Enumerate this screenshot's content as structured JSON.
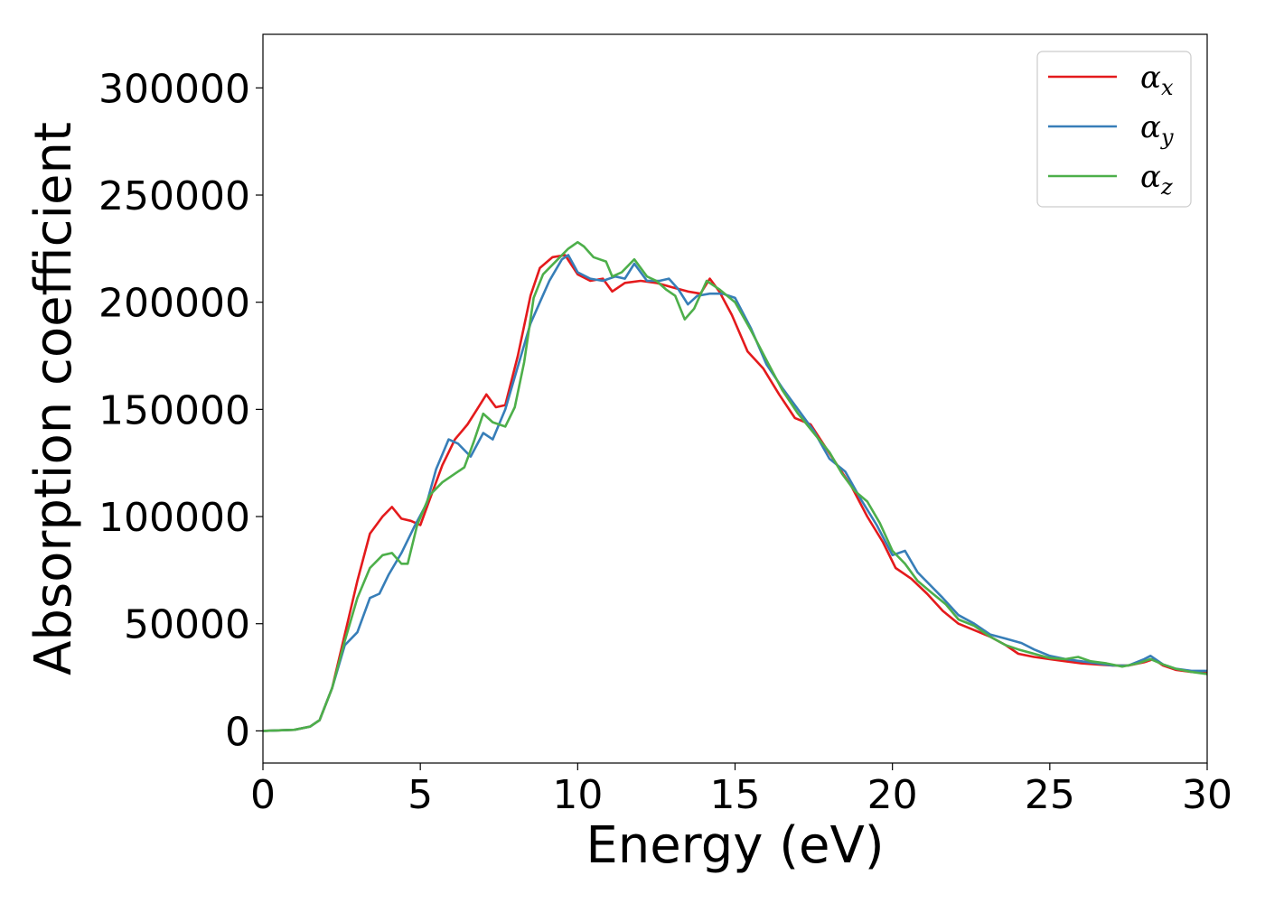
{
  "chart_data": {
    "type": "line",
    "title": "",
    "xlabel": "Energy (eV)",
    "ylabel": "Absorption coefficient",
    "xlim": [
      0,
      30
    ],
    "ylim": [
      -15000,
      325000
    ],
    "xticks": [
      "0",
      "5",
      "10",
      "15",
      "20",
      "25",
      "30"
    ],
    "yticks": [
      "0",
      "50000",
      "100000",
      "150000",
      "200000",
      "250000",
      "300000"
    ],
    "xtick_values": [
      0,
      5,
      10,
      15,
      20,
      25,
      30
    ],
    "ytick_values": [
      0,
      50000,
      100000,
      150000,
      200000,
      250000,
      300000
    ],
    "grid": false,
    "legend_position": "top-right",
    "series": [
      {
        "name": "αx",
        "label_main": "α",
        "label_sub": "x",
        "color": "#e41a1c",
        "points": [
          [
            0,
            0
          ],
          [
            1,
            500
          ],
          [
            1.5,
            2000
          ],
          [
            1.8,
            5000
          ],
          [
            2.2,
            20000
          ],
          [
            2.6,
            45000
          ],
          [
            3.0,
            70000
          ],
          [
            3.4,
            92000
          ],
          [
            3.8,
            100000
          ],
          [
            4.1,
            104500
          ],
          [
            4.4,
            99000
          ],
          [
            4.7,
            98000
          ],
          [
            5.0,
            96000
          ],
          [
            5.3,
            108000
          ],
          [
            5.7,
            124000
          ],
          [
            6.1,
            136000
          ],
          [
            6.5,
            143000
          ],
          [
            6.8,
            150000
          ],
          [
            7.1,
            157000
          ],
          [
            7.4,
            151000
          ],
          [
            7.7,
            152000
          ],
          [
            8.1,
            175000
          ],
          [
            8.5,
            203000
          ],
          [
            8.8,
            216000
          ],
          [
            9.2,
            221000
          ],
          [
            9.6,
            222000
          ],
          [
            10.0,
            213000
          ],
          [
            10.4,
            210000
          ],
          [
            10.8,
            211000
          ],
          [
            11.1,
            205000
          ],
          [
            11.5,
            209000
          ],
          [
            12.0,
            210000
          ],
          [
            12.5,
            209000
          ],
          [
            13.0,
            207000
          ],
          [
            13.5,
            205000
          ],
          [
            13.9,
            204000
          ],
          [
            14.2,
            211000
          ],
          [
            14.5,
            205000
          ],
          [
            14.9,
            194000
          ],
          [
            15.4,
            177000
          ],
          [
            15.9,
            169000
          ],
          [
            16.4,
            157000
          ],
          [
            16.9,
            146000
          ],
          [
            17.4,
            143000
          ],
          [
            17.8,
            134000
          ],
          [
            18.2,
            125000
          ],
          [
            18.7,
            114000
          ],
          [
            19.2,
            100000
          ],
          [
            19.7,
            88000
          ],
          [
            20.1,
            76000
          ],
          [
            20.6,
            71000
          ],
          [
            21.1,
            64000
          ],
          [
            21.6,
            56000
          ],
          [
            22.1,
            50000
          ],
          [
            22.6,
            47000
          ],
          [
            23.1,
            44000
          ],
          [
            23.6,
            40000
          ],
          [
            24.0,
            36000
          ],
          [
            24.5,
            34500
          ],
          [
            25.0,
            33500
          ],
          [
            25.5,
            32500
          ],
          [
            26.0,
            31500
          ],
          [
            26.5,
            31000
          ],
          [
            27.0,
            30500
          ],
          [
            27.5,
            30500
          ],
          [
            28.0,
            32000
          ],
          [
            28.3,
            33500
          ],
          [
            28.6,
            30500
          ],
          [
            29.0,
            28500
          ],
          [
            29.5,
            27500
          ],
          [
            30.0,
            27000
          ]
        ]
      },
      {
        "name": "αy",
        "label_main": "α",
        "label_sub": "y",
        "color": "#377eb8",
        "points": [
          [
            0,
            0
          ],
          [
            1,
            500
          ],
          [
            1.5,
            2000
          ],
          [
            1.8,
            5000
          ],
          [
            2.2,
            20000
          ],
          [
            2.6,
            40000
          ],
          [
            3.0,
            46000
          ],
          [
            3.4,
            62000
          ],
          [
            3.7,
            64000
          ],
          [
            4.0,
            73000
          ],
          [
            4.4,
            83000
          ],
          [
            4.8,
            95000
          ],
          [
            5.2,
            106000
          ],
          [
            5.5,
            122000
          ],
          [
            5.9,
            136000
          ],
          [
            6.2,
            134000
          ],
          [
            6.6,
            128000
          ],
          [
            7.0,
            139000
          ],
          [
            7.3,
            136000
          ],
          [
            7.7,
            150000
          ],
          [
            8.1,
            170000
          ],
          [
            8.5,
            190000
          ],
          [
            8.8,
            200000
          ],
          [
            9.1,
            210000
          ],
          [
            9.5,
            220000
          ],
          [
            9.7,
            222000
          ],
          [
            10.0,
            214000
          ],
          [
            10.4,
            211000
          ],
          [
            10.8,
            210000
          ],
          [
            11.2,
            212000
          ],
          [
            11.5,
            211000
          ],
          [
            11.8,
            218000
          ],
          [
            12.2,
            210000
          ],
          [
            12.6,
            210000
          ],
          [
            12.9,
            211000
          ],
          [
            13.2,
            206000
          ],
          [
            13.5,
            199000
          ],
          [
            13.8,
            203000
          ],
          [
            14.2,
            204000
          ],
          [
            14.6,
            204000
          ],
          [
            15.0,
            202000
          ],
          [
            15.5,
            188000
          ],
          [
            16.0,
            171000
          ],
          [
            16.5,
            160000
          ],
          [
            17.0,
            150000
          ],
          [
            17.5,
            140000
          ],
          [
            18.0,
            127000
          ],
          [
            18.5,
            121000
          ],
          [
            19.0,
            108000
          ],
          [
            19.5,
            96000
          ],
          [
            20.0,
            82000
          ],
          [
            20.4,
            84000
          ],
          [
            20.8,
            74000
          ],
          [
            21.2,
            68000
          ],
          [
            21.6,
            62000
          ],
          [
            22.1,
            54000
          ],
          [
            22.6,
            50000
          ],
          [
            23.1,
            45000
          ],
          [
            23.6,
            43000
          ],
          [
            24.1,
            41000
          ],
          [
            24.5,
            38000
          ],
          [
            25.0,
            35000
          ],
          [
            25.5,
            33500
          ],
          [
            26.0,
            32500
          ],
          [
            26.5,
            31500
          ],
          [
            27.0,
            30500
          ],
          [
            27.5,
            30500
          ],
          [
            28.0,
            33500
          ],
          [
            28.2,
            35000
          ],
          [
            28.6,
            31000
          ],
          [
            29.0,
            29000
          ],
          [
            29.5,
            28000
          ],
          [
            30.0,
            28000
          ]
        ]
      },
      {
        "name": "αz",
        "label_main": "α",
        "label_sub": "z",
        "color": "#4daf4a",
        "points": [
          [
            0,
            0
          ],
          [
            1,
            500
          ],
          [
            1.5,
            2000
          ],
          [
            1.8,
            5000
          ],
          [
            2.2,
            20000
          ],
          [
            2.6,
            42000
          ],
          [
            3.0,
            62000
          ],
          [
            3.4,
            76000
          ],
          [
            3.8,
            82000
          ],
          [
            4.1,
            83000
          ],
          [
            4.4,
            78000
          ],
          [
            4.6,
            78000
          ],
          [
            4.9,
            96000
          ],
          [
            5.3,
            110000
          ],
          [
            5.7,
            116000
          ],
          [
            6.1,
            120000
          ],
          [
            6.4,
            123000
          ],
          [
            6.7,
            135000
          ],
          [
            7.0,
            148000
          ],
          [
            7.3,
            144000
          ],
          [
            7.7,
            142000
          ],
          [
            8.0,
            151000
          ],
          [
            8.3,
            172000
          ],
          [
            8.6,
            202000
          ],
          [
            8.9,
            213000
          ],
          [
            9.3,
            219000
          ],
          [
            9.7,
            225000
          ],
          [
            10.0,
            228000
          ],
          [
            10.2,
            226000
          ],
          [
            10.5,
            221000
          ],
          [
            10.9,
            219000
          ],
          [
            11.1,
            212000
          ],
          [
            11.4,
            214000
          ],
          [
            11.8,
            220000
          ],
          [
            12.2,
            212000
          ],
          [
            12.5,
            210000
          ],
          [
            12.8,
            206000
          ],
          [
            13.1,
            203000
          ],
          [
            13.4,
            192000
          ],
          [
            13.7,
            197000
          ],
          [
            14.1,
            210000
          ],
          [
            14.5,
            206000
          ],
          [
            15.0,
            200000
          ],
          [
            15.5,
            187000
          ],
          [
            16.0,
            173000
          ],
          [
            16.5,
            159000
          ],
          [
            17.0,
            148000
          ],
          [
            17.5,
            139000
          ],
          [
            18.0,
            130000
          ],
          [
            18.4,
            120000
          ],
          [
            18.8,
            112000
          ],
          [
            19.2,
            107000
          ],
          [
            19.6,
            97000
          ],
          [
            20.0,
            84000
          ],
          [
            20.4,
            78000
          ],
          [
            20.8,
            70000
          ],
          [
            21.2,
            65000
          ],
          [
            21.7,
            59000
          ],
          [
            22.1,
            52000
          ],
          [
            22.6,
            49000
          ],
          [
            23.1,
            44000
          ],
          [
            23.6,
            40000
          ],
          [
            24.0,
            38000
          ],
          [
            24.5,
            36000
          ],
          [
            25.0,
            34000
          ],
          [
            25.5,
            33500
          ],
          [
            25.9,
            34500
          ],
          [
            26.3,
            32500
          ],
          [
            26.8,
            31500
          ],
          [
            27.3,
            30000
          ],
          [
            27.8,
            31500
          ],
          [
            28.2,
            33500
          ],
          [
            28.6,
            31000
          ],
          [
            29.0,
            29000
          ],
          [
            29.5,
            27500
          ],
          [
            30.0,
            26500
          ]
        ]
      }
    ]
  }
}
